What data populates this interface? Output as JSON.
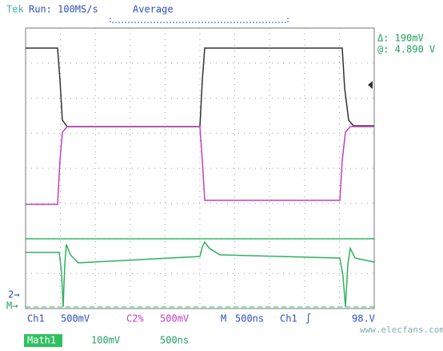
{
  "header": {
    "brand": "Tek",
    "run": "Run: 100MS/s",
    "mode": "Average"
  },
  "cursor": {
    "delta": "Δ: 190mV",
    "at": "@: 4.890 V"
  },
  "markers": {
    "ch2": "2→",
    "math": "M→"
  },
  "footer": {
    "row1": {
      "ch1": "Ch1",
      "ch1_scale": "500mV",
      "ch2": "C2%",
      "ch2_scale": "500mV",
      "timebase_label": "M",
      "timebase": "500ns",
      "trigger_source": "Ch1",
      "trigger_slope": "∫",
      "trigger_level": "98.V"
    },
    "row2": {
      "math": "Math1",
      "math_scale": "100mV",
      "math_time": "500ns"
    }
  },
  "watermark": "www.elecfans.com"
}
